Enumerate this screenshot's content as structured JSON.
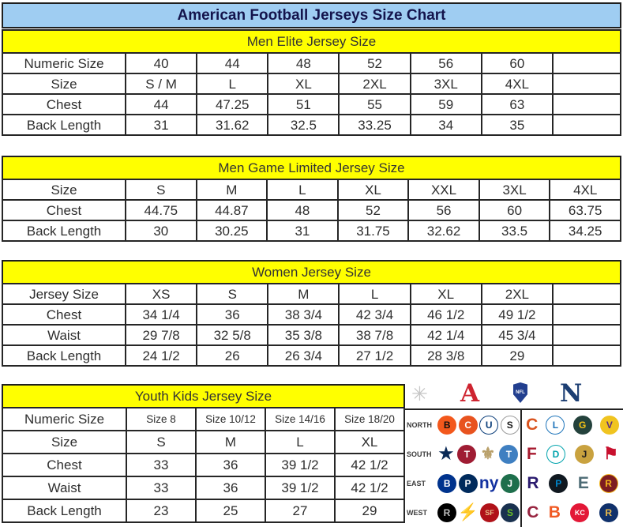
{
  "title": "American Football Jerseys Size Chart",
  "colors": {
    "title_bg": "#9fcdf2",
    "title_text": "#14144c",
    "section_bg": "#ffff00",
    "border": "#1f1f1f",
    "cell_text": "#2e2e2e",
    "afc_red": "#ce2430",
    "nfc_navy": "#1c3e73"
  },
  "tables": [
    {
      "name": "men-elite",
      "section": "Men Elite Jersey Size",
      "trailing_empty_col": true,
      "rows": [
        {
          "label": "Numeric Size",
          "values": [
            "40",
            "44",
            "48",
            "52",
            "56",
            "60"
          ]
        },
        {
          "label": "Size",
          "values": [
            "S / M",
            "L",
            "XL",
            "2XL",
            "3XL",
            "4XL"
          ]
        },
        {
          "label": "Chest",
          "values": [
            "44",
            "47.25",
            "51",
            "55",
            "59",
            "63"
          ]
        },
        {
          "label": "Back Length",
          "values": [
            "31",
            "31.62",
            "32.5",
            "33.25",
            "34",
            "35"
          ]
        }
      ]
    },
    {
      "name": "men-game-limited",
      "section": "Men Game Limited Jersey Size",
      "trailing_empty_col": false,
      "rows": [
        {
          "label": "Size",
          "values": [
            "S",
            "M",
            "L",
            "XL",
            "XXL",
            "3XL",
            "4XL"
          ]
        },
        {
          "label": "Chest",
          "values": [
            "44.75",
            "44.87",
            "48",
            "52",
            "56",
            "60",
            "63.75"
          ]
        },
        {
          "label": "Back Length",
          "values": [
            "30",
            "30.25",
            "31",
            "31.75",
            "32.62",
            "33.5",
            "34.25"
          ]
        }
      ]
    },
    {
      "name": "women",
      "section": "Women Jersey Size",
      "trailing_empty_col": true,
      "rows": [
        {
          "label": "Jersey Size",
          "values": [
            "XS",
            "S",
            "M",
            "L",
            "XL",
            "2XL"
          ]
        },
        {
          "label": "Chest",
          "values": [
            "34 1/4",
            "36",
            "38 3/4",
            "42 3/4",
            "46 1/2",
            "49 1/2"
          ]
        },
        {
          "label": "Waist",
          "values": [
            "29 7/8",
            "32 5/8",
            "35 3/8",
            "38 7/8",
            "42 1/4",
            "45 3/4"
          ]
        },
        {
          "label": "Back Length",
          "values": [
            "24 1/2",
            "26",
            "26 3/4",
            "27 1/2",
            "28 3/8",
            "29"
          ]
        }
      ]
    },
    {
      "name": "youth",
      "section": "Youth Kids Jersey Size",
      "trailing_empty_col": false,
      "rows": [
        {
          "label": "Numeric Size",
          "values": [
            "Size 8",
            "Size 10/12",
            "Size 14/16",
            "Size 18/20"
          ]
        },
        {
          "label": "Size",
          "values": [
            "S",
            "M",
            "L",
            "XL"
          ]
        },
        {
          "label": "Chest",
          "values": [
            "33",
            "36",
            "39 1/2",
            "42 1/2"
          ]
        },
        {
          "label": "Waist",
          "values": [
            "33",
            "36",
            "39 1/2",
            "42 1/2"
          ]
        },
        {
          "label": "Back Length",
          "values": [
            "23",
            "25",
            "27",
            "29"
          ]
        }
      ]
    }
  ],
  "nfl_grid": {
    "header": {
      "starburst": "✳",
      "afc": "A",
      "shield": "NFL",
      "nfc": "N"
    },
    "rows": [
      {
        "label": "NORTH",
        "afc": [
          {
            "team": "bengals",
            "glyph": "B",
            "bg": "#f3581c",
            "fg": "#101010"
          },
          {
            "team": "browns",
            "glyph": "C",
            "bg": "#e8531f",
            "fg": "#ffffff"
          },
          {
            "team": "colts",
            "glyph": "U",
            "bg": "#ffffff",
            "fg": "#0b3e7a",
            "border": "#0b3e7a"
          },
          {
            "team": "steelers",
            "glyph": "S",
            "bg": "#ffffff",
            "fg": "#1a1a1a",
            "border": "#9a9a9a"
          }
        ],
        "nfc": [
          {
            "team": "bears",
            "glyph": "C",
            "bg": "none",
            "fg": "#d9531e"
          },
          {
            "team": "lions",
            "glyph": "L",
            "bg": "#ffffff",
            "fg": "#1d74ba",
            "border": "#1d74ba"
          },
          {
            "team": "packers",
            "glyph": "G",
            "bg": "#24423c",
            "fg": "#f5c315"
          },
          {
            "team": "vikings",
            "glyph": "V",
            "bg": "#f0c420",
            "fg": "#5a2d81"
          }
        ]
      },
      {
        "label": "SOUTH",
        "afc": [
          {
            "team": "cowboys",
            "glyph": "★",
            "bg": "none",
            "fg": "#0a2a56"
          },
          {
            "team": "texans",
            "glyph": "T",
            "bg": "#9f1c33",
            "fg": "#ffffff"
          },
          {
            "team": "saints",
            "glyph": "⚜",
            "bg": "none",
            "fg": "#b9a06a"
          },
          {
            "team": "titans",
            "glyph": "T",
            "bg": "#3f7fc1",
            "fg": "#ffffff"
          }
        ],
        "nfc": [
          {
            "team": "falcons",
            "glyph": "F",
            "bg": "none",
            "fg": "#a6192e"
          },
          {
            "team": "dolphins",
            "glyph": "D",
            "bg": "#ffffff",
            "fg": "#00a3ad",
            "border": "#00a3ad"
          },
          {
            "team": "jaguars",
            "glyph": "J",
            "bg": "#c9a23f",
            "fg": "#221f1f"
          },
          {
            "team": "buccaneers",
            "glyph": "⚑",
            "bg": "none",
            "fg": "#c8102e"
          }
        ]
      },
      {
        "label": "EAST",
        "afc": [
          {
            "team": "bills",
            "glyph": "B",
            "bg": "#00338d",
            "fg": "#ffffff"
          },
          {
            "team": "patriots",
            "glyph": "P",
            "bg": "#002a5c",
            "fg": "#ffffff"
          },
          {
            "team": "giants",
            "glyph": "ny",
            "bg": "none",
            "fg": "#1231a0"
          },
          {
            "team": "jets",
            "glyph": "J",
            "bg": "#1e6f4c",
            "fg": "#ffffff"
          }
        ],
        "nfc": [
          {
            "team": "ravens",
            "glyph": "R",
            "bg": "none",
            "fg": "#2a1a6e"
          },
          {
            "team": "panthers",
            "glyph": "P",
            "bg": "#101820",
            "fg": "#0085ca"
          },
          {
            "team": "eagles",
            "glyph": "E",
            "bg": "none",
            "fg": "#4d6b75"
          },
          {
            "team": "redskins",
            "glyph": "R",
            "bg": "#7d1c21",
            "fg": "#f1b51c",
            "border": "#f1b51c"
          }
        ]
      },
      {
        "label": "WEST",
        "afc": [
          {
            "team": "raiders",
            "glyph": "R",
            "bg": "#000000",
            "fg": "#c0c0c0"
          },
          {
            "team": "chargers",
            "glyph": "⚡",
            "bg": "none",
            "fg": "#f2a900"
          },
          {
            "team": "49ers",
            "glyph": "SF",
            "bg": "#b01219",
            "fg": "#e6be8a"
          },
          {
            "team": "seahawks",
            "glyph": "S",
            "bg": "#19314f",
            "fg": "#69be28"
          }
        ],
        "nfc": [
          {
            "team": "cardinals",
            "glyph": "C",
            "bg": "none",
            "fg": "#97233f"
          },
          {
            "team": "broncos",
            "glyph": "B",
            "bg": "none",
            "fg": "#f05a24"
          },
          {
            "team": "chiefs",
            "glyph": "KC",
            "bg": "#e31837",
            "fg": "#ffffff"
          },
          {
            "team": "rams",
            "glyph": "R",
            "bg": "#10316b",
            "fg": "#e9b949"
          }
        ]
      }
    ]
  }
}
